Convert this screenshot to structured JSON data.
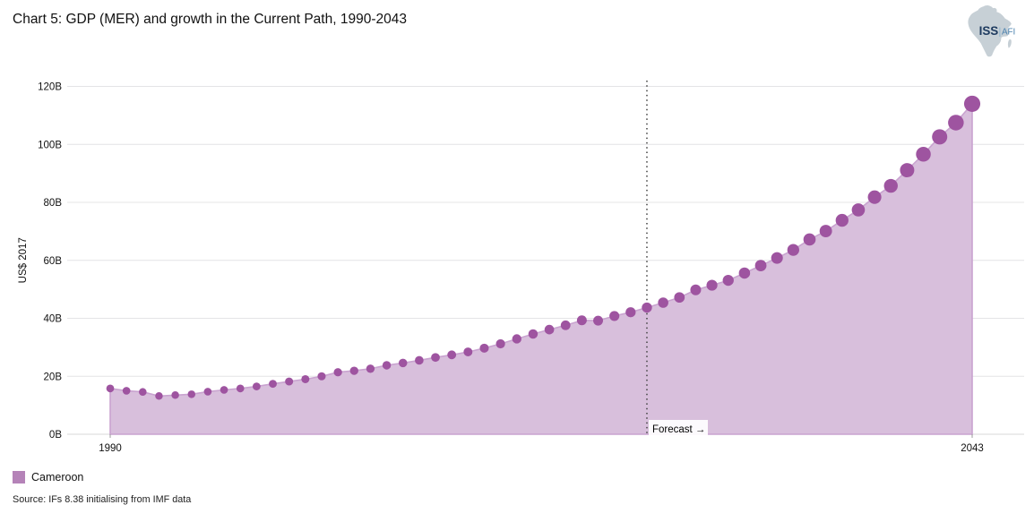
{
  "header": {
    "title": "Chart 5: GDP (MER) and growth in the Current Path, 1990-2043"
  },
  "logo": {
    "org": "ISS",
    "divider": "|",
    "unit": "AFI"
  },
  "chart_data": {
    "type": "area",
    "title": "Chart 5: GDP (MER) and growth in the Current Path, 1990-2043",
    "xlabel": "",
    "ylabel": "US$ 2017",
    "unit": "billion US$ 2017",
    "ylim": [
      0,
      120
    ],
    "yticks": [
      {
        "value": 0,
        "label": "0B"
      },
      {
        "value": 20,
        "label": "20B"
      },
      {
        "value": 40,
        "label": "40B"
      },
      {
        "value": 60,
        "label": "60B"
      },
      {
        "value": 80,
        "label": "80B"
      },
      {
        "value": 100,
        "label": "100B"
      },
      {
        "value": 120,
        "label": "120B"
      }
    ],
    "xticks": [
      {
        "value": 1990,
        "label": "1990"
      },
      {
        "value": 2043,
        "label": "2043"
      }
    ],
    "grid": true,
    "legend_position": "bottom-left",
    "forecast": {
      "label": "Forecast →",
      "year": 2023
    },
    "x": [
      1990,
      1991,
      1992,
      1993,
      1994,
      1995,
      1996,
      1997,
      1998,
      1999,
      2000,
      2001,
      2002,
      2003,
      2004,
      2005,
      2006,
      2007,
      2008,
      2009,
      2010,
      2011,
      2012,
      2013,
      2014,
      2015,
      2016,
      2017,
      2018,
      2019,
      2020,
      2021,
      2022,
      2023,
      2024,
      2025,
      2026,
      2027,
      2028,
      2029,
      2030,
      2031,
      2032,
      2033,
      2034,
      2035,
      2036,
      2037,
      2038,
      2039,
      2040,
      2041,
      2042,
      2043
    ],
    "series": [
      {
        "name": "Cameroon",
        "values": [
          15.8,
          15.0,
          14.6,
          13.2,
          13.5,
          13.8,
          14.7,
          15.3,
          15.8,
          16.5,
          17.4,
          18.2,
          19.0,
          20.0,
          21.4,
          21.9,
          22.6,
          23.8,
          24.6,
          25.5,
          26.5,
          27.4,
          28.4,
          29.7,
          31.2,
          32.9,
          34.6,
          36.1,
          37.6,
          39.3,
          39.2,
          40.8,
          42.1,
          43.7,
          45.4,
          47.2,
          49.8,
          51.4,
          53.1,
          55.6,
          58.2,
          60.8,
          63.6,
          67.2,
          70.1,
          73.8,
          77.4,
          81.8,
          85.7,
          91.1,
          96.6,
          102.6,
          107.5,
          114.0
        ]
      }
    ],
    "colors": {
      "marker": "#9e54a0",
      "area_fill": "#d8bfdc",
      "area_edge": "#c9a3d0",
      "legend_swatch": "#b583b8",
      "gridline": "#e4e4e6",
      "baseline": "#d8d8d8",
      "forecast_line": "#4a4a4a"
    }
  },
  "legend": {
    "items": [
      {
        "label": "Cameroon",
        "color": "#b583b8"
      }
    ]
  },
  "source": {
    "text": "Source: IFs 8.38 initialising from IMF data"
  }
}
